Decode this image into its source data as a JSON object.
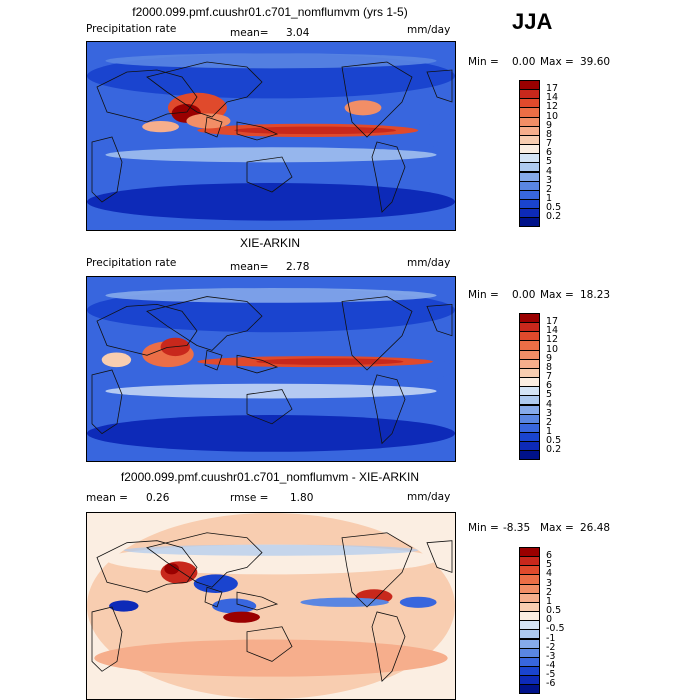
{
  "season": "JJA",
  "panels": [
    {
      "title": "f2000.099.pmf.cuushr01.c701_nomflumvm (yrs 1-5)",
      "left_label": "Precipitation rate",
      "stat_label": "mean=",
      "stat_value": "3.04",
      "stat2_label": "",
      "stat2_value": "",
      "units": "mm/day",
      "min_label": "Min =",
      "min_value": "0.00",
      "max_label": "Max =",
      "max_value": "39.60",
      "colorbar_labels": [
        "17",
        "14",
        "12",
        "10",
        "9",
        "8",
        "7",
        "6",
        "5",
        "4",
        "3",
        "2",
        "1",
        "0.5",
        "0.2"
      ],
      "colorbar_colors": [
        "#9a0000",
        "#c8281c",
        "#e04a2c",
        "#ec6e46",
        "#f28e66",
        "#f6ae8c",
        "#f8cdb0",
        "#fbeee2",
        "#d4e4f6",
        "#aecaf0",
        "#86aaea",
        "#5a86e2",
        "#3866de",
        "#1a44cf",
        "#0d2ab8",
        "#00128a"
      ]
    },
    {
      "title": "XIE-ARKIN",
      "left_label": "Precipitation rate",
      "stat_label": "mean=",
      "stat_value": "2.78",
      "stat2_label": "",
      "stat2_value": "",
      "units": "mm/day",
      "min_label": "Min =",
      "min_value": "0.00",
      "max_label": "Max =",
      "max_value": "18.23",
      "colorbar_labels": [
        "17",
        "14",
        "12",
        "10",
        "9",
        "8",
        "7",
        "6",
        "5",
        "4",
        "3",
        "2",
        "1",
        "0.5",
        "0.2"
      ],
      "colorbar_colors": [
        "#9a0000",
        "#c8281c",
        "#e04a2c",
        "#ec6e46",
        "#f28e66",
        "#f6ae8c",
        "#f8cdb0",
        "#fbeee2",
        "#d4e4f6",
        "#aecaf0",
        "#86aaea",
        "#5a86e2",
        "#3866de",
        "#1a44cf",
        "#0d2ab8",
        "#00128a"
      ]
    },
    {
      "title": "f2000.099.pmf.cuushr01.c701_nomflumvm - XIE-ARKIN",
      "left_label": "",
      "stat_label": "mean =",
      "stat_value": "0.26",
      "stat2_label": "rmse =",
      "stat2_value": "1.80",
      "units": "mm/day",
      "min_label": "Min =",
      "min_value": "-8.35",
      "max_label": "Max =",
      "max_value": "26.48",
      "colorbar_labels": [
        "6",
        "5",
        "4",
        "3",
        "2",
        "1",
        "0.5",
        "0",
        "-0.5",
        "-1",
        "-2",
        "-3",
        "-4",
        "-5",
        "-6"
      ],
      "colorbar_colors": [
        "#9a0000",
        "#c8281c",
        "#e04a2c",
        "#ec6e46",
        "#f28e66",
        "#f6ae8c",
        "#f8cdb0",
        "#fbeee2",
        "#d4e4f6",
        "#aecaf0",
        "#86aaea",
        "#5a86e2",
        "#3866de",
        "#1a44cf",
        "#0d2ab8",
        "#00128a"
      ]
    }
  ],
  "chart_data": [
    {
      "type": "heatmap",
      "title": "f2000.099.pmf.cuushr01.c701_nomflumvm (yrs 1-5)",
      "variable": "Precipitation rate",
      "units": "mm/day",
      "mean": 3.04,
      "min": 0.0,
      "max": 39.6,
      "contour_levels": [
        0.2,
        0.5,
        1,
        2,
        3,
        4,
        5,
        6,
        7,
        8,
        9,
        10,
        12,
        14,
        17
      ]
    },
    {
      "type": "heatmap",
      "title": "XIE-ARKIN",
      "variable": "Precipitation rate",
      "units": "mm/day",
      "mean": 2.78,
      "min": 0.0,
      "max": 18.23,
      "contour_levels": [
        0.2,
        0.5,
        1,
        2,
        3,
        4,
        5,
        6,
        7,
        8,
        9,
        10,
        12,
        14,
        17
      ]
    },
    {
      "type": "heatmap",
      "title": "f2000.099.pmf.cuushr01.c701_nomflumvm - XIE-ARKIN",
      "units": "mm/day",
      "mean": 0.26,
      "rmse": 1.8,
      "min": -8.35,
      "max": 26.48,
      "contour_levels": [
        -6,
        -5,
        -4,
        -3,
        -2,
        -1,
        -0.5,
        0,
        0.5,
        1,
        2,
        3,
        4,
        5,
        6
      ]
    }
  ]
}
